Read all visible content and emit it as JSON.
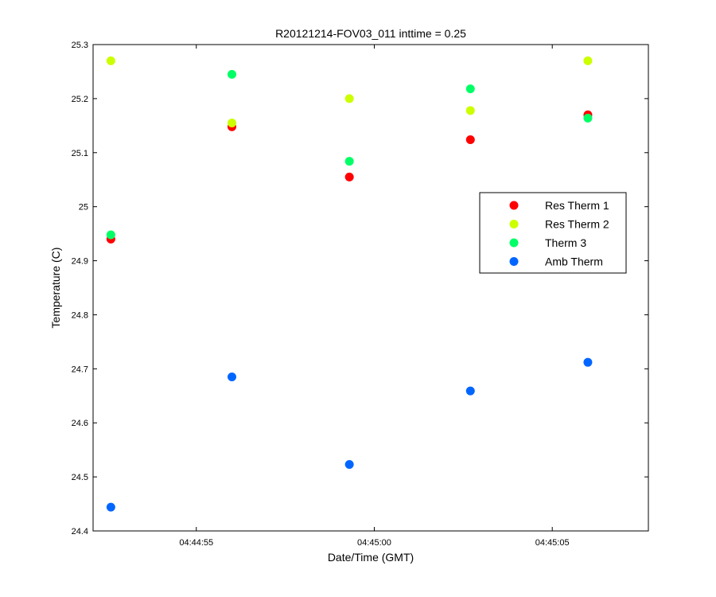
{
  "chart_data": {
    "type": "scatter",
    "title": "R20121214-FOV03_011 inttime = 0.25",
    "xlabel": "Date/Time (GMT)",
    "ylabel": "Temperature (C)",
    "xlim": [
      "04:44:52.1",
      "04:45:07.7"
    ],
    "ylim": [
      24.4,
      25.3
    ],
    "x_ticks": [
      "04:44:55",
      "04:45:00",
      "04:45:05"
    ],
    "y_ticks": [
      "24.4",
      "24.5",
      "24.6",
      "24.7",
      "24.8",
      "24.9",
      "25",
      "25.1",
      "25.2",
      "25.3"
    ],
    "legend_position": "right",
    "grid": false,
    "series": [
      {
        "name": "Res Therm 1",
        "color": "#ff0000",
        "points": [
          {
            "x": "04:44:52.6",
            "y": 24.94
          },
          {
            "x": "04:44:56.0",
            "y": 25.148
          },
          {
            "x": "04:44:59.3",
            "y": 25.055
          },
          {
            "x": "04:45:02.7",
            "y": 25.124
          },
          {
            "x": "04:45:06.0",
            "y": 25.17
          }
        ]
      },
      {
        "name": "Res Therm 2",
        "color": "#ccff00",
        "points": [
          {
            "x": "04:44:52.6",
            "y": 25.27
          },
          {
            "x": "04:44:56.0",
            "y": 25.155
          },
          {
            "x": "04:44:59.3",
            "y": 25.2
          },
          {
            "x": "04:45:02.7",
            "y": 25.178
          },
          {
            "x": "04:45:06.0",
            "y": 25.27
          }
        ]
      },
      {
        "name": "Therm 3",
        "color": "#00ff66",
        "points": [
          {
            "x": "04:44:52.6",
            "y": 24.948
          },
          {
            "x": "04:44:56.0",
            "y": 25.245
          },
          {
            "x": "04:44:59.3",
            "y": 25.084
          },
          {
            "x": "04:45:02.7",
            "y": 25.218
          },
          {
            "x": "04:45:06.0",
            "y": 25.164
          }
        ]
      },
      {
        "name": "Amb Therm",
        "color": "#0066ff",
        "points": [
          {
            "x": "04:44:52.6",
            "y": 24.444
          },
          {
            "x": "04:44:56.0",
            "y": 24.685
          },
          {
            "x": "04:44:59.3",
            "y": 24.523
          },
          {
            "x": "04:45:02.7",
            "y": 24.659
          },
          {
            "x": "04:45:06.0",
            "y": 24.712
          }
        ]
      }
    ]
  }
}
